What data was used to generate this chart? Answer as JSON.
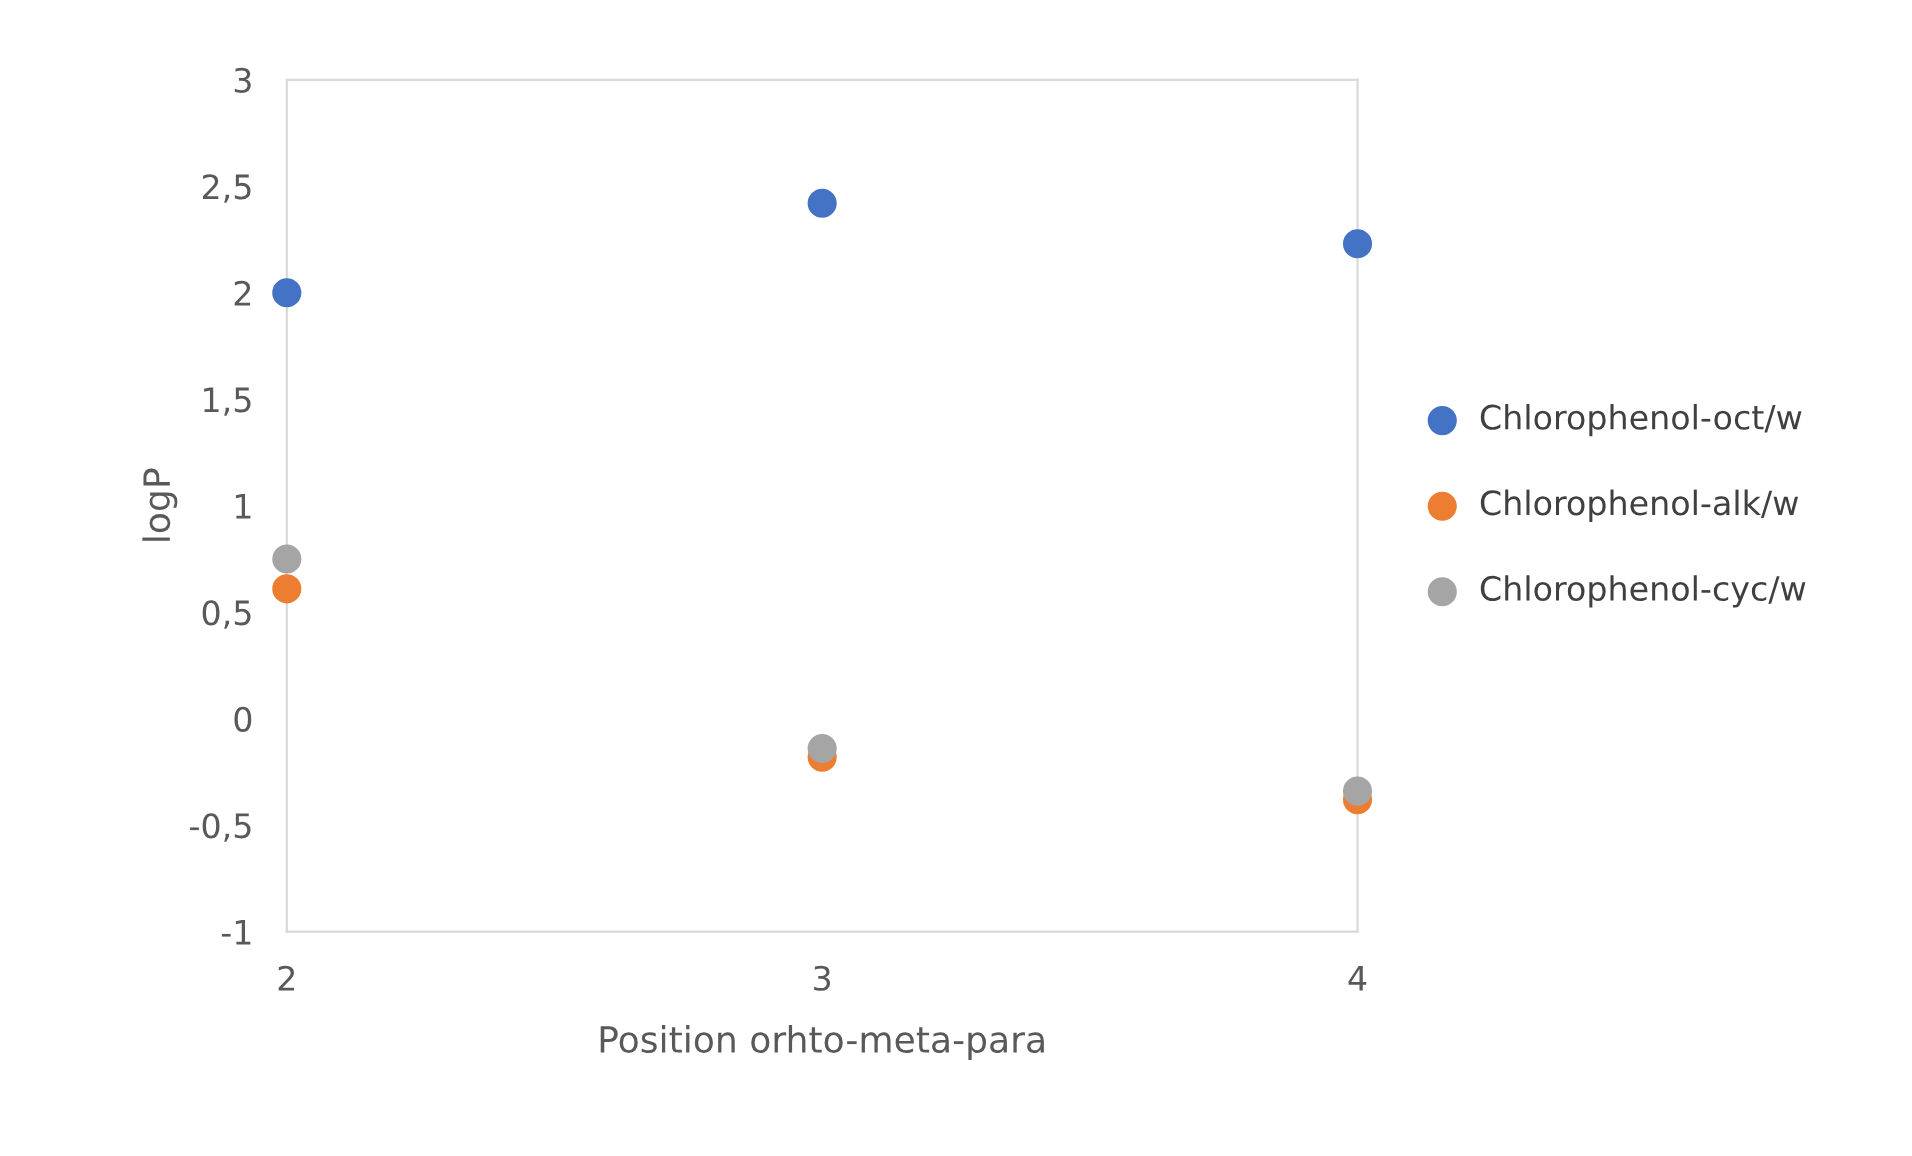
{
  "chart_data": {
    "type": "scatter",
    "xlabel": "Position orhto-meta-para",
    "ylabel": "logP",
    "x": [
      2,
      3,
      4
    ],
    "series": [
      {
        "name": "Chlorophenol-oct/w",
        "color": "#4472c4",
        "values": [
          2.0,
          2.42,
          2.23
        ]
      },
      {
        "name": "Chlorophenol-alk/w",
        "color": "#ed7d31",
        "values": [
          0.61,
          -0.18,
          -0.38
        ]
      },
      {
        "name": "Chlorophenol-cyc/w",
        "color": "#a5a5a5",
        "values": [
          0.75,
          -0.14,
          -0.34
        ]
      }
    ],
    "xlim": [
      2,
      4
    ],
    "xticks": [
      2,
      3,
      4
    ],
    "ylim": [
      -1,
      3
    ],
    "yticks": [
      {
        "value": -1,
        "label": "-1"
      },
      {
        "value": -0.5,
        "label": "-0,5"
      },
      {
        "value": 0,
        "label": "0"
      },
      {
        "value": 0.5,
        "label": "0,5"
      },
      {
        "value": 1,
        "label": "1"
      },
      {
        "value": 1.5,
        "label": "1,5"
      },
      {
        "value": 2,
        "label": "2"
      },
      {
        "value": 2.5,
        "label": "2,5"
      },
      {
        "value": 3,
        "label": "3"
      }
    ],
    "grid": false,
    "legend": "right",
    "marker": "circle"
  }
}
